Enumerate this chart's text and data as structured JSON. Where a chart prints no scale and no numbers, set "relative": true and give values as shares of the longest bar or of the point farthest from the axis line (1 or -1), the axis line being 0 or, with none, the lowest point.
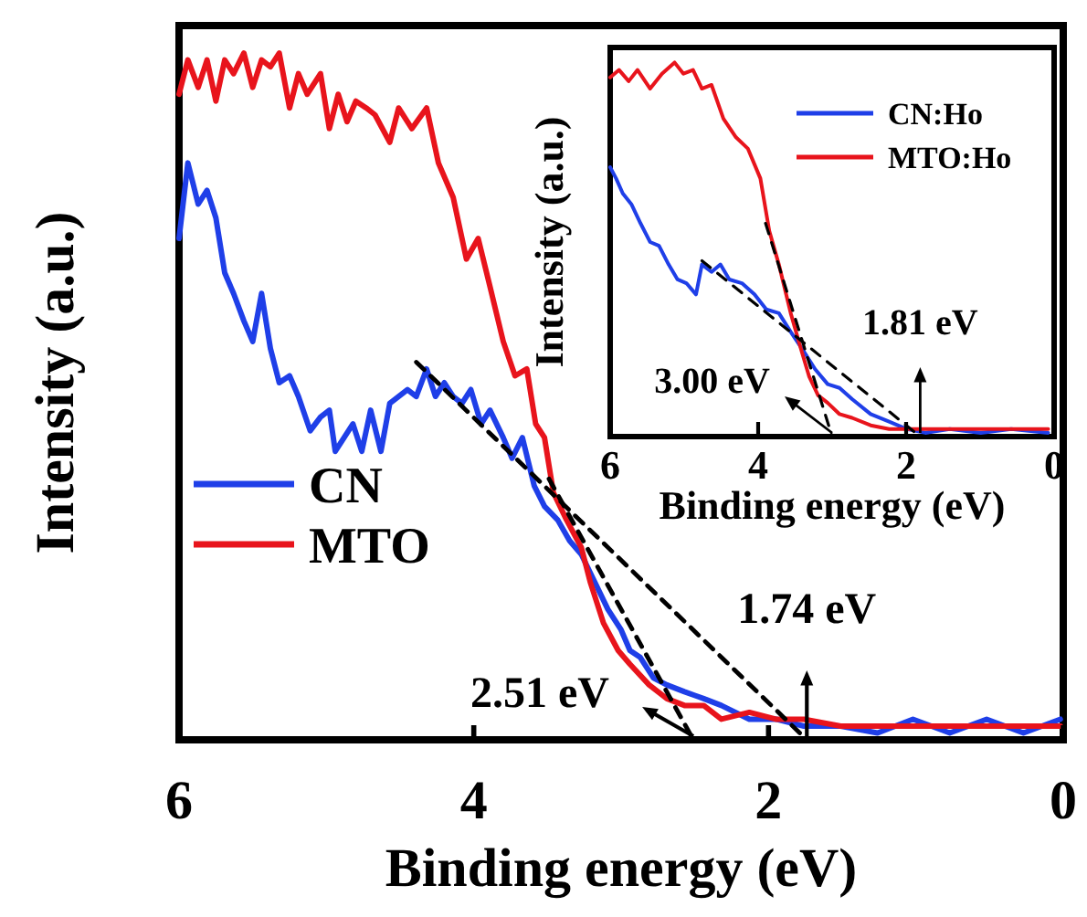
{
  "chart_data": [
    {
      "type": "line",
      "xlabel": "Binding energy (eV)",
      "ylabel": "Intensity (a.u.)",
      "relative": true,
      "xlim": [
        6,
        0
      ],
      "xticks": [
        6,
        4,
        2,
        0
      ],
      "tick_labels": "x",
      "legend": "left",
      "line_style": "solid",
      "series": [
        {
          "name": "CN",
          "color": "#1f3fe8",
          "x": [
            6.0,
            5.94,
            5.87,
            5.81,
            5.75,
            5.69,
            5.63,
            5.56,
            5.5,
            5.44,
            5.38,
            5.32,
            5.25,
            5.19,
            5.11,
            5.04,
            4.98,
            4.94,
            4.88,
            4.82,
            4.76,
            4.7,
            4.63,
            4.57,
            4.51,
            4.45,
            4.39,
            4.32,
            4.26,
            4.2,
            4.14,
            4.08,
            4.02,
            3.95,
            3.89,
            3.8,
            3.74,
            3.67,
            3.59,
            3.52,
            3.43,
            3.35,
            3.27,
            3.18,
            3.09,
            3.0,
            2.94,
            2.87,
            2.78,
            2.69,
            2.57,
            2.44,
            2.32,
            2.13,
            1.95,
            1.76,
            1.51,
            1.26,
            1.02,
            0.77,
            0.52,
            0.27,
            0.02
          ],
          "values": [
            0.73,
            0.84,
            0.78,
            0.8,
            0.76,
            0.68,
            0.65,
            0.61,
            0.58,
            0.65,
            0.57,
            0.52,
            0.53,
            0.5,
            0.45,
            0.47,
            0.48,
            0.42,
            0.44,
            0.46,
            0.42,
            0.48,
            0.42,
            0.49,
            0.5,
            0.51,
            0.5,
            0.54,
            0.5,
            0.52,
            0.5,
            0.49,
            0.51,
            0.46,
            0.48,
            0.44,
            0.41,
            0.44,
            0.37,
            0.34,
            0.32,
            0.29,
            0.27,
            0.23,
            0.19,
            0.16,
            0.13,
            0.12,
            0.09,
            0.08,
            0.07,
            0.06,
            0.05,
            0.03,
            0.03,
            0.02,
            0.02,
            0.01,
            0.03,
            0.01,
            0.03,
            0.01,
            0.03
          ]
        },
        {
          "name": "MTO",
          "color": "#e8141c",
          "x": [
            6.0,
            5.94,
            5.87,
            5.81,
            5.75,
            5.69,
            5.63,
            5.56,
            5.5,
            5.44,
            5.38,
            5.32,
            5.25,
            5.19,
            5.13,
            5.04,
            4.98,
            4.92,
            4.86,
            4.8,
            4.73,
            4.67,
            4.57,
            4.51,
            4.42,
            4.32,
            4.24,
            4.14,
            4.05,
            3.97,
            3.89,
            3.8,
            3.72,
            3.64,
            3.58,
            3.52,
            3.46,
            3.37,
            3.27,
            3.21,
            3.12,
            3.02,
            2.94,
            2.81,
            2.69,
            2.57,
            2.44,
            2.32,
            2.13,
            1.95,
            1.76,
            1.51,
            1.26,
            1.02,
            0.77,
            0.52,
            0.27,
            0.02
          ],
          "values": [
            0.94,
            0.99,
            0.95,
            0.99,
            0.93,
            0.99,
            0.97,
            1.0,
            0.95,
            0.99,
            0.98,
            1.0,
            0.92,
            0.97,
            0.94,
            0.97,
            0.89,
            0.94,
            0.9,
            0.93,
            0.92,
            0.91,
            0.87,
            0.92,
            0.89,
            0.92,
            0.84,
            0.79,
            0.7,
            0.73,
            0.66,
            0.58,
            0.53,
            0.54,
            0.46,
            0.44,
            0.36,
            0.32,
            0.28,
            0.23,
            0.17,
            0.13,
            0.11,
            0.08,
            0.06,
            0.05,
            0.05,
            0.03,
            0.04,
            0.03,
            0.03,
            0.02,
            0.02,
            0.02,
            0.02,
            0.02,
            0.02,
            0.02
          ]
        },
        {
          "type": "line",
          "color": "#000000",
          "line_style": "dashed",
          "x": [
            3.49,
            2.51
          ],
          "values": [
            0.38,
            0
          ]
        },
        {
          "type": "line",
          "color": "#000000",
          "line_style": "dashed",
          "x": [
            4.39,
            1.74
          ],
          "values": [
            0.55,
            0
          ]
        }
      ],
      "annotations": [
        {
          "text": "2.51 eV",
          "x": 2.51,
          "y": 0
        },
        {
          "text": "1.74 eV",
          "x": 1.74,
          "y": 0
        }
      ]
    },
    {
      "type": "line",
      "xlabel": "Binding energy (eV)",
      "ylabel": "Intensity (a.u.)",
      "relative": true,
      "xlim": [
        6,
        0
      ],
      "xticks": [
        6,
        4,
        2,
        0
      ],
      "tick_labels": "x",
      "legend": "top right",
      "line_style": "solid",
      "series": [
        {
          "name": "CN:Ho",
          "color": "#1f3fe8",
          "x": [
            6.0,
            5.92,
            5.83,
            5.71,
            5.59,
            5.46,
            5.34,
            5.21,
            5.09,
            4.97,
            4.84,
            4.76,
            4.63,
            4.51,
            4.39,
            4.22,
            4.05,
            3.89,
            3.72,
            3.56,
            3.39,
            3.23,
            3.06,
            2.9,
            2.73,
            2.48,
            2.23,
            1.99,
            1.74,
            1.41,
            0.99,
            0.58,
            0.08
          ],
          "values": [
            0.72,
            0.69,
            0.65,
            0.62,
            0.57,
            0.52,
            0.51,
            0.46,
            0.42,
            0.41,
            0.38,
            0.46,
            0.44,
            0.46,
            0.42,
            0.41,
            0.38,
            0.34,
            0.33,
            0.28,
            0.23,
            0.18,
            0.14,
            0.13,
            0.1,
            0.06,
            0.04,
            0.02,
            0.01,
            0.02,
            0.01,
            0.02,
            0.01
          ]
        },
        {
          "name": "MTO:Ho",
          "color": "#e8141c",
          "x": [
            6.0,
            5.88,
            5.75,
            5.63,
            5.46,
            5.3,
            5.13,
            5.01,
            4.88,
            4.76,
            4.63,
            4.47,
            4.3,
            4.14,
            3.97,
            3.85,
            3.72,
            3.56,
            3.43,
            3.31,
            3.19,
            3.06,
            2.9,
            2.73,
            2.48,
            2.23,
            1.99,
            1.74,
            1.41,
            0.99,
            0.58,
            0.08
          ],
          "values": [
            0.96,
            0.98,
            0.95,
            0.98,
            0.93,
            0.97,
            1.0,
            0.97,
            0.98,
            0.93,
            0.94,
            0.85,
            0.8,
            0.77,
            0.69,
            0.55,
            0.46,
            0.33,
            0.24,
            0.16,
            0.11,
            0.09,
            0.06,
            0.05,
            0.03,
            0.02,
            0.02,
            0.02,
            0.02,
            0.02,
            0.02,
            0.02
          ]
        },
        {
          "type": "line",
          "color": "#000000",
          "line_style": "dashed",
          "x": [
            3.9,
            3.0
          ],
          "values": [
            0.57,
            0
          ]
        },
        {
          "type": "line",
          "color": "#000000",
          "line_style": "dashed",
          "x": [
            4.76,
            1.81
          ],
          "values": [
            0.47,
            0
          ]
        }
      ],
      "annotations": [
        {
          "text": "3.00 eV",
          "x": 3.0,
          "y": 0
        },
        {
          "text": "1.81 eV",
          "x": 1.81,
          "y": 0
        }
      ]
    }
  ]
}
